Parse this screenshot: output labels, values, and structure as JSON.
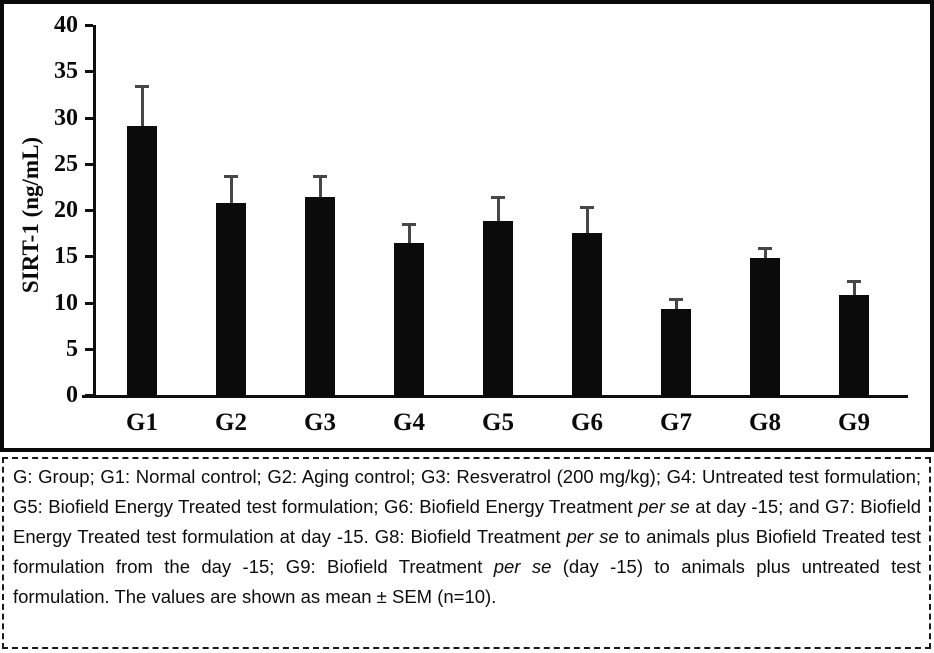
{
  "figure": {
    "caption": {
      "segments": [
        {
          "text": "G: Group; G1: Normal control; G2: Aging control; G3: Resveratrol (200 mg/kg); G4: Untreated test formulation; G5: Biofield Energy Treated test formulation; G6: Biofield Energy Treatment ",
          "italic": false
        },
        {
          "text": "per se",
          "italic": true
        },
        {
          "text": " at day -15; and G7: Biofield Energy Treated test formulation at day -15. G8: Biofield Treatment ",
          "italic": false
        },
        {
          "text": "per se",
          "italic": true
        },
        {
          "text": " to animals plus Biofield Treated test formulation from the day -15; G9: Biofield Treatment ",
          "italic": false
        },
        {
          "text": "per se",
          "italic": true
        },
        {
          "text": " (day -15) to animals plus untreated test formulation. The values are shown as mean ± SEM (n=10).",
          "italic": false
        }
      ]
    }
  },
  "chart_data": {
    "type": "bar",
    "categories": [
      "G1",
      "G2",
      "G3",
      "G4",
      "G5",
      "G6",
      "G7",
      "G8",
      "G9"
    ],
    "values": [
      29.1,
      20.8,
      21.4,
      16.4,
      18.8,
      17.5,
      9.3,
      14.8,
      10.8
    ],
    "errors": [
      4.4,
      3.0,
      2.4,
      2.2,
      2.7,
      2.9,
      1.2,
      1.2,
      1.6
    ],
    "error_style": "upper SEM whisker with cap",
    "title": "",
    "xlabel": "",
    "ylabel": "SIRT-1 (ng/mL)",
    "ylim": [
      0,
      40
    ],
    "ytick_step": 5,
    "yticks": [
      0,
      5,
      10,
      15,
      20,
      25,
      30,
      35,
      40
    ],
    "grid": false,
    "legend": false,
    "bar_color": "#0b0b0b",
    "error_color": "#474747",
    "axis_color": "#0f0f0f"
  }
}
